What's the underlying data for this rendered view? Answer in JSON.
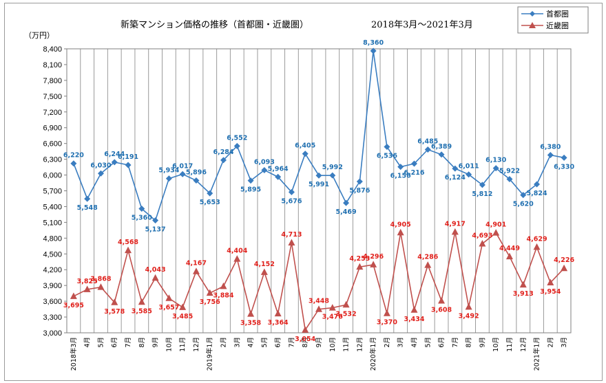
{
  "chart_data": {
    "type": "line",
    "title": "新築マンション価格の推移（首都圏・近畿圏）",
    "subtitle": "2018年3月～2021年3月",
    "ylabel": "（万円）",
    "xlabel": "",
    "ylim": [
      3000,
      8400
    ],
    "y_ticks": [
      "3,000",
      "3,300",
      "3,600",
      "3,900",
      "4,200",
      "4,500",
      "4,800",
      "5,100",
      "5,400",
      "5,700",
      "6,000",
      "6,300",
      "6,600",
      "6,900",
      "7,200",
      "7,500",
      "7,800",
      "8,100",
      "8,400"
    ],
    "grid": "vertical",
    "legend_position": "top-right",
    "categories": [
      "2018年3月",
      "4月",
      "5月",
      "6月",
      "7月",
      "8月",
      "9月",
      "10月",
      "11月",
      "12月",
      "2019年1月",
      "2月",
      "3月",
      "4月",
      "5月",
      "6月",
      "7月",
      "8月",
      "9月",
      "10月",
      "11月",
      "12月",
      "2020年1月",
      "2月",
      "3月",
      "4月",
      "5月",
      "6月",
      "7月",
      "8月",
      "9月",
      "10月",
      "11月",
      "12月",
      "2021年1月",
      "2月",
      "3月"
    ],
    "series": [
      {
        "name": "首都圏",
        "color": "#3a7dc0",
        "label_color": "#1f6fb0",
        "marker": "diamond",
        "values": [
          6220,
          5548,
          6030,
          6244,
          6191,
          5360,
          5137,
          5934,
          6017,
          5896,
          5653,
          6284,
          6552,
          5895,
          6093,
          5964,
          5676,
          6405,
          5991,
          5992,
          5469,
          5876,
          8360,
          6536,
          6156,
          6216,
          6485,
          6389,
          6124,
          6011,
          5812,
          6130,
          5922,
          5620,
          5824,
          6380,
          6330
        ],
        "labels": [
          "6,220",
          "5,548",
          "6,030",
          "6,244",
          "6,191",
          "5,360",
          "5,137",
          "5,934",
          "6,017",
          "5,896",
          "5,653",
          "6,284",
          "6,552",
          "5,895",
          "6,093",
          "5,964",
          "5,676",
          "6,405",
          "5,991",
          "5,992",
          "5,469",
          "5,876",
          "8,360",
          "6,536",
          "6,156",
          "6,216",
          "6,485",
          "6,389",
          "6,124",
          "6,011",
          "5,812",
          "6,130",
          "5,922",
          "5,620",
          "5,824",
          "6,380",
          "6,330"
        ]
      },
      {
        "name": "近畿圏",
        "color": "#c0504d",
        "label_color": "#e0201b",
        "marker": "triangle",
        "values": [
          3695,
          3825,
          3868,
          3578,
          4568,
          3585,
          4043,
          3657,
          3485,
          4167,
          3756,
          3884,
          4404,
          3358,
          4152,
          3364,
          4713,
          3054,
          3448,
          3476,
          3532,
          4253,
          4296,
          3370,
          4905,
          3434,
          4286,
          3608,
          4917,
          3492,
          4693,
          4901,
          4449,
          3913,
          4629,
          3954,
          4226
        ],
        "labels": [
          "3,695",
          "3,825",
          "3,868",
          "3,578",
          "4,568",
          "3,585",
          "4,043",
          "3,657",
          "3,485",
          "4,167",
          "3,756",
          "3,884",
          "4,404",
          "3,358",
          "4,152",
          "3,364",
          "4,713",
          "3,054",
          "3,448",
          "3,476",
          "3,532",
          "4,253",
          "4,296",
          "3,370",
          "4,905",
          "3,434",
          "4,286",
          "3,608",
          "4,917",
          "3,492",
          "4,693",
          "4,901",
          "4,449",
          "3,913",
          "4,629",
          "3,954",
          "4,226"
        ]
      }
    ]
  }
}
